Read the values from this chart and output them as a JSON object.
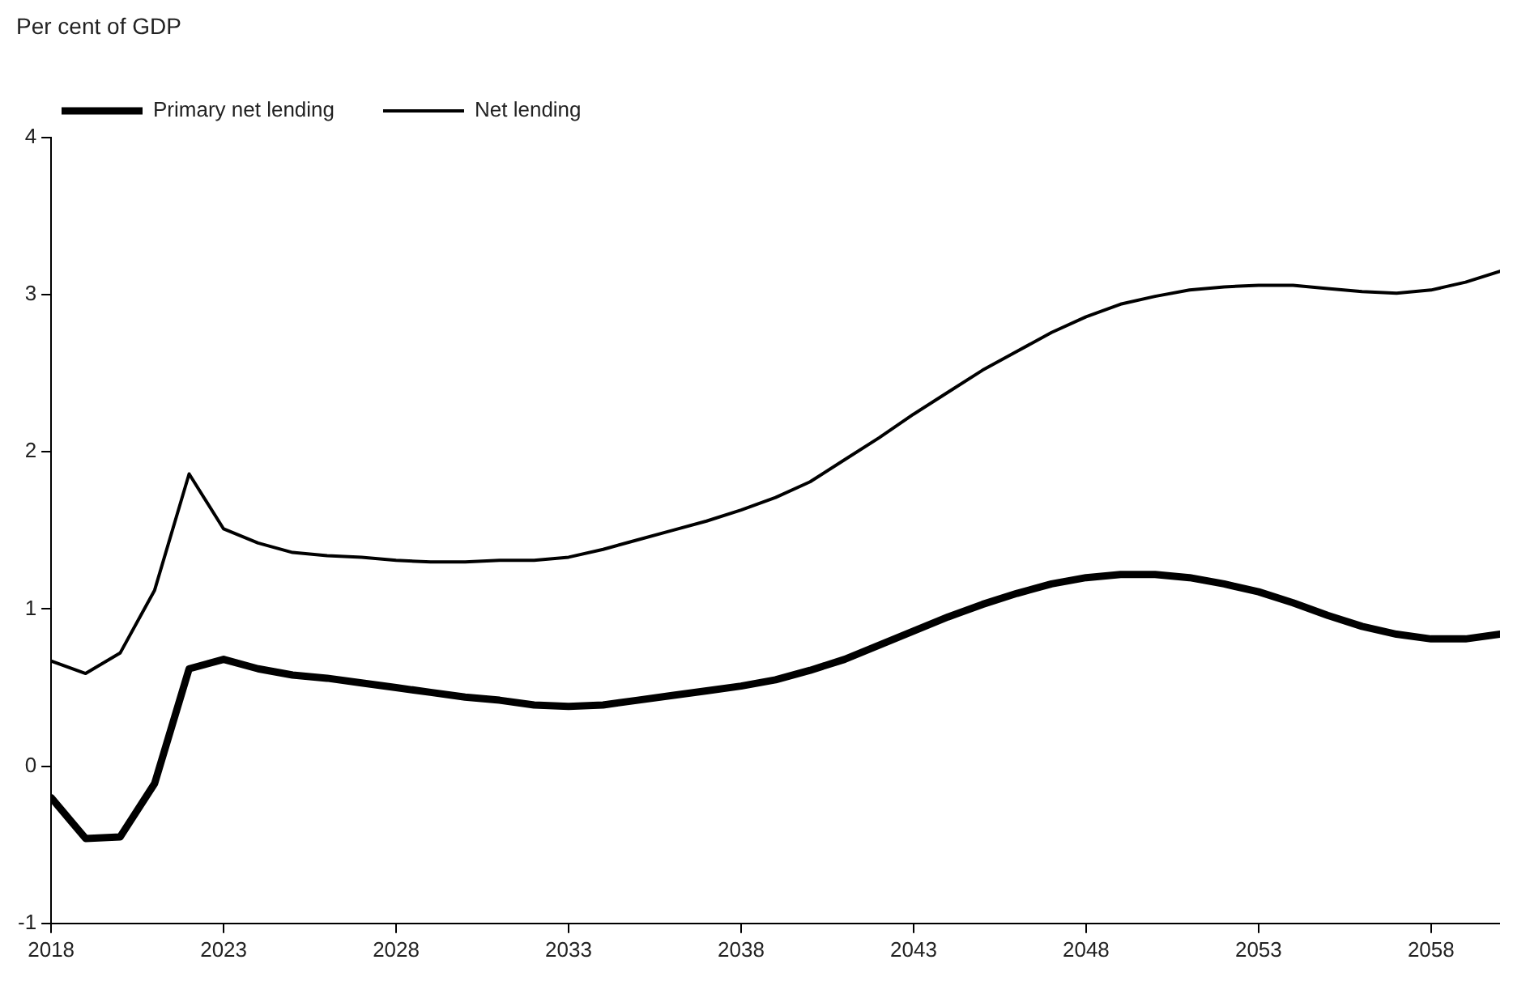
{
  "chart_data": {
    "type": "line",
    "ylabel": "Per cent of GDP",
    "x": [
      2018,
      2019,
      2020,
      2021,
      2022,
      2023,
      2024,
      2025,
      2026,
      2027,
      2028,
      2029,
      2030,
      2031,
      2032,
      2033,
      2034,
      2035,
      2036,
      2037,
      2038,
      2039,
      2040,
      2041,
      2042,
      2043,
      2044,
      2045,
      2046,
      2047,
      2048,
      2049,
      2050,
      2051,
      2052,
      2053,
      2054,
      2055,
      2056,
      2057,
      2058,
      2059,
      2060
    ],
    "series": [
      {
        "name": "Primary net lending",
        "color": "#000000",
        "values": [
          -0.2,
          -0.46,
          -0.45,
          -0.11,
          0.62,
          0.68,
          0.62,
          0.58,
          0.56,
          0.53,
          0.5,
          0.47,
          0.44,
          0.42,
          0.39,
          0.38,
          0.39,
          0.42,
          0.45,
          0.48,
          0.51,
          0.55,
          0.61,
          0.68,
          0.77,
          0.86,
          0.95,
          1.03,
          1.1,
          1.16,
          1.2,
          1.22,
          1.22,
          1.2,
          1.16,
          1.11,
          1.04,
          0.96,
          0.89,
          0.84,
          0.81,
          0.81,
          0.84
        ]
      },
      {
        "name": "Net lending",
        "color": "#000000",
        "values": [
          0.67,
          0.59,
          0.72,
          1.12,
          1.86,
          1.51,
          1.42,
          1.36,
          1.34,
          1.33,
          1.31,
          1.3,
          1.3,
          1.31,
          1.31,
          1.33,
          1.38,
          1.44,
          1.5,
          1.56,
          1.63,
          1.71,
          1.81,
          1.95,
          2.09,
          2.24,
          2.38,
          2.52,
          2.64,
          2.76,
          2.86,
          2.94,
          2.99,
          3.03,
          3.05,
          3.06,
          3.06,
          3.04,
          3.02,
          3.01,
          3.03,
          3.08,
          3.15
        ]
      }
    ],
    "xlim": [
      2018,
      2060
    ],
    "xticks": [
      2018,
      2023,
      2028,
      2033,
      2038,
      2043,
      2048,
      2053,
      2058
    ],
    "ylim": [
      -1,
      4
    ],
    "yticks": [
      -1,
      0,
      1,
      2,
      3,
      4
    ],
    "grid": false,
    "legend": "top left",
    "marker": "none",
    "line_style": "solid"
  }
}
